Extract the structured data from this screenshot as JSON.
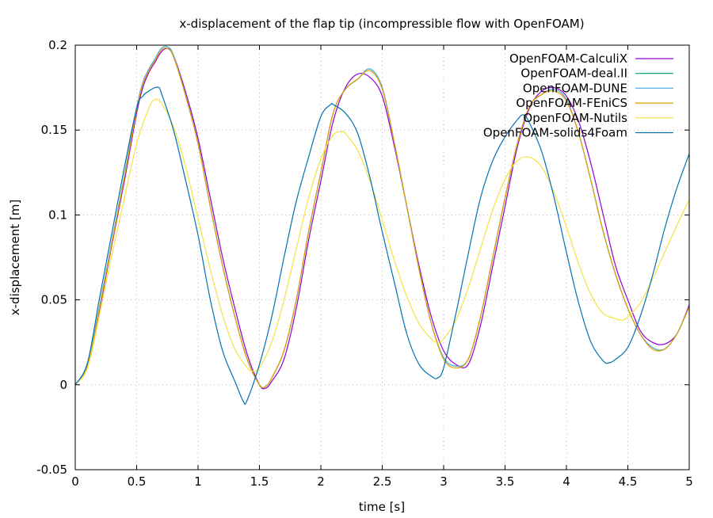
{
  "chart_data": {
    "type": "line",
    "title": "x-displacement of the flap tip (incompressible flow with OpenFOAM)",
    "xlabel": "time [s]",
    "ylabel": "x-displacement [m]",
    "xlim": [
      0,
      5
    ],
    "ylim": [
      -0.05,
      0.2
    ],
    "xticks": [
      0,
      0.5,
      1,
      1.5,
      2,
      2.5,
      3,
      3.5,
      4,
      4.5,
      5
    ],
    "xtick_labels": [
      "0",
      "0.5",
      "1",
      "1.5",
      "2",
      "2.5",
      "3",
      "3.5",
      "4",
      "4.5",
      "5"
    ],
    "yticks": [
      -0.05,
      0,
      0.05,
      0.1,
      0.15,
      0.2
    ],
    "ytick_labels": [
      "-0.05",
      "0",
      "0.05",
      "0.1",
      "0.15",
      "0.2"
    ],
    "grid": true,
    "legend_position": "upper right",
    "series": [
      {
        "name": "OpenFOAM-CalculiX",
        "color": "#9400d3",
        "x": [
          0,
          0.1,
          0.2,
          0.3,
          0.4,
          0.5,
          0.55,
          0.6,
          0.65,
          0.7,
          0.75,
          0.8,
          0.9,
          1.0,
          1.1,
          1.2,
          1.3,
          1.4,
          1.5,
          1.55,
          1.6,
          1.7,
          1.8,
          1.9,
          2.0,
          2.1,
          2.2,
          2.3,
          2.4,
          2.5,
          2.6,
          2.7,
          2.8,
          2.9,
          3.0,
          3.1,
          3.2,
          3.3,
          3.4,
          3.5,
          3.6,
          3.7,
          3.8,
          3.9,
          4.0,
          4.1,
          4.2,
          4.3,
          4.4,
          4.5,
          4.6,
          4.7,
          4.8,
          4.9,
          5.0
        ],
        "y": [
          0,
          0.012,
          0.045,
          0.083,
          0.12,
          0.16,
          0.175,
          0.184,
          0.19,
          0.196,
          0.198,
          0.194,
          0.172,
          0.145,
          0.11,
          0.075,
          0.045,
          0.018,
          0.0,
          -0.002,
          0.002,
          0.015,
          0.045,
          0.085,
          0.12,
          0.155,
          0.175,
          0.183,
          0.181,
          0.17,
          0.14,
          0.105,
          0.07,
          0.04,
          0.02,
          0.012,
          0.012,
          0.035,
          0.07,
          0.105,
          0.14,
          0.163,
          0.173,
          0.175,
          0.17,
          0.155,
          0.13,
          0.1,
          0.07,
          0.05,
          0.032,
          0.025,
          0.024,
          0.03,
          0.047
        ]
      },
      {
        "name": "OpenFOAM-deal.II",
        "color": "#009e73",
        "x": [
          0,
          0.1,
          0.2,
          0.3,
          0.4,
          0.5,
          0.55,
          0.6,
          0.65,
          0.7,
          0.75,
          0.8,
          0.9,
          1.0,
          1.1,
          1.2,
          1.3,
          1.4,
          1.5,
          1.55,
          1.6,
          1.7,
          1.8,
          1.9,
          2.0,
          2.1,
          2.2,
          2.3,
          2.4,
          2.5,
          2.6,
          2.7,
          2.8,
          2.9,
          3.0,
          3.1,
          3.2,
          3.3,
          3.4,
          3.5,
          3.6,
          3.7,
          3.8,
          3.9,
          4.0,
          4.1,
          4.2,
          4.3,
          4.4,
          4.5,
          4.6,
          4.7,
          4.8,
          4.9,
          5.0
        ],
        "y": [
          0,
          0.012,
          0.047,
          0.085,
          0.123,
          0.163,
          0.178,
          0.186,
          0.192,
          0.198,
          0.199,
          0.194,
          0.17,
          0.142,
          0.105,
          0.07,
          0.04,
          0.015,
          0.0,
          -0.001,
          0.004,
          0.02,
          0.05,
          0.09,
          0.125,
          0.16,
          0.174,
          0.18,
          0.186,
          0.175,
          0.142,
          0.105,
          0.068,
          0.036,
          0.016,
          0.011,
          0.015,
          0.04,
          0.075,
          0.11,
          0.142,
          0.164,
          0.171,
          0.174,
          0.168,
          0.148,
          0.12,
          0.09,
          0.065,
          0.045,
          0.03,
          0.022,
          0.021,
          0.03,
          0.046
        ]
      },
      {
        "name": "OpenFOAM-DUNE",
        "color": "#56b4e9",
        "x": [
          0,
          0.1,
          0.2,
          0.3,
          0.4,
          0.5,
          0.55,
          0.6,
          0.65,
          0.7,
          0.75,
          0.8,
          0.9,
          1.0,
          1.1,
          1.2,
          1.3,
          1.4,
          1.5,
          1.55,
          1.6,
          1.7,
          1.8,
          1.9,
          2.0,
          2.1,
          2.2,
          2.3,
          2.4,
          2.5,
          2.6,
          2.7,
          2.8,
          2.9,
          3.0,
          3.1,
          3.2,
          3.3,
          3.4,
          3.5,
          3.6,
          3.7,
          3.8,
          3.9,
          4.0,
          4.1,
          4.2,
          4.3,
          4.4,
          4.5,
          4.6,
          4.7,
          4.8,
          4.9,
          5.0
        ],
        "y": [
          0,
          0.012,
          0.047,
          0.085,
          0.123,
          0.163,
          0.178,
          0.186,
          0.192,
          0.198,
          0.199,
          0.194,
          0.17,
          0.142,
          0.105,
          0.07,
          0.04,
          0.015,
          0.0,
          -0.001,
          0.004,
          0.02,
          0.05,
          0.09,
          0.125,
          0.16,
          0.174,
          0.18,
          0.186,
          0.175,
          0.142,
          0.105,
          0.068,
          0.036,
          0.016,
          0.011,
          0.015,
          0.04,
          0.075,
          0.11,
          0.142,
          0.164,
          0.171,
          0.174,
          0.168,
          0.148,
          0.12,
          0.09,
          0.065,
          0.045,
          0.03,
          0.022,
          0.021,
          0.03,
          0.046
        ]
      },
      {
        "name": "OpenFOAM-FEniCS",
        "color": "#e69f00",
        "x": [
          0,
          0.1,
          0.2,
          0.3,
          0.4,
          0.5,
          0.55,
          0.6,
          0.65,
          0.7,
          0.75,
          0.8,
          0.9,
          1.0,
          1.1,
          1.2,
          1.3,
          1.4,
          1.5,
          1.55,
          1.6,
          1.7,
          1.8,
          1.9,
          2.0,
          2.1,
          2.2,
          2.3,
          2.4,
          2.5,
          2.6,
          2.7,
          2.8,
          2.9,
          3.0,
          3.1,
          3.2,
          3.3,
          3.4,
          3.5,
          3.6,
          3.7,
          3.8,
          3.9,
          4.0,
          4.1,
          4.2,
          4.3,
          4.4,
          4.5,
          4.6,
          4.7,
          4.8,
          4.9,
          5.0
        ],
        "y": [
          0,
          0.011,
          0.046,
          0.084,
          0.122,
          0.162,
          0.177,
          0.185,
          0.191,
          0.197,
          0.198,
          0.193,
          0.17,
          0.142,
          0.105,
          0.07,
          0.04,
          0.015,
          0.0,
          -0.001,
          0.004,
          0.02,
          0.05,
          0.09,
          0.125,
          0.16,
          0.174,
          0.18,
          0.185,
          0.174,
          0.142,
          0.105,
          0.068,
          0.036,
          0.015,
          0.01,
          0.015,
          0.04,
          0.075,
          0.11,
          0.142,
          0.164,
          0.171,
          0.173,
          0.167,
          0.148,
          0.12,
          0.09,
          0.065,
          0.045,
          0.03,
          0.021,
          0.021,
          0.03,
          0.046
        ]
      },
      {
        "name": "OpenFOAM-Nutils",
        "color": "#f0e442",
        "x": [
          0,
          0.1,
          0.2,
          0.3,
          0.4,
          0.5,
          0.6,
          0.65,
          0.7,
          0.8,
          0.9,
          1.0,
          1.1,
          1.2,
          1.3,
          1.4,
          1.45,
          1.5,
          1.6,
          1.7,
          1.8,
          1.9,
          2.0,
          2.1,
          2.17,
          2.2,
          2.3,
          2.4,
          2.5,
          2.6,
          2.7,
          2.8,
          2.9,
          2.95,
          3.0,
          3.1,
          3.2,
          3.3,
          3.4,
          3.5,
          3.6,
          3.7,
          3.8,
          3.9,
          4.0,
          4.1,
          4.2,
          4.3,
          4.4,
          4.45,
          4.5,
          4.6,
          4.7,
          4.8,
          4.9,
          5.0
        ],
        "y": [
          0,
          0.01,
          0.042,
          0.077,
          0.11,
          0.142,
          0.163,
          0.168,
          0.166,
          0.152,
          0.128,
          0.098,
          0.068,
          0.041,
          0.021,
          0.01,
          0.008,
          0.01,
          0.025,
          0.05,
          0.08,
          0.11,
          0.133,
          0.147,
          0.149,
          0.148,
          0.138,
          0.12,
          0.097,
          0.073,
          0.052,
          0.036,
          0.027,
          0.025,
          0.027,
          0.038,
          0.057,
          0.08,
          0.103,
          0.121,
          0.132,
          0.134,
          0.128,
          0.113,
          0.093,
          0.071,
          0.053,
          0.042,
          0.039,
          0.038,
          0.04,
          0.048,
          0.062,
          0.078,
          0.094,
          0.109
        ]
      },
      {
        "name": "OpenFOAM-solids4Foam",
        "color": "#0072b2",
        "x": [
          0,
          0.1,
          0.2,
          0.3,
          0.4,
          0.5,
          0.55,
          0.6,
          0.65,
          0.68,
          0.7,
          0.8,
          0.9,
          1.0,
          1.1,
          1.2,
          1.3,
          1.37,
          1.4,
          1.5,
          1.6,
          1.7,
          1.8,
          1.9,
          2.0,
          2.08,
          2.1,
          2.2,
          2.3,
          2.4,
          2.5,
          2.6,
          2.7,
          2.8,
          2.9,
          2.95,
          3.0,
          3.1,
          3.2,
          3.3,
          3.4,
          3.5,
          3.6,
          3.65,
          3.7,
          3.8,
          3.9,
          4.0,
          4.1,
          4.2,
          4.3,
          4.35,
          4.4,
          4.5,
          4.6,
          4.7,
          4.8,
          4.9,
          5.0
        ],
        "y": [
          0,
          0.013,
          0.052,
          0.09,
          0.128,
          0.163,
          0.17,
          0.173,
          0.175,
          0.175,
          0.172,
          0.15,
          0.12,
          0.088,
          0.05,
          0.02,
          0.002,
          -0.01,
          -0.009,
          0.012,
          0.04,
          0.075,
          0.108,
          0.134,
          0.158,
          0.165,
          0.165,
          0.16,
          0.148,
          0.122,
          0.09,
          0.06,
          0.03,
          0.012,
          0.005,
          0.004,
          0.01,
          0.042,
          0.077,
          0.11,
          0.132,
          0.146,
          0.156,
          0.159,
          0.154,
          0.137,
          0.11,
          0.078,
          0.048,
          0.025,
          0.014,
          0.013,
          0.015,
          0.022,
          0.04,
          0.064,
          0.092,
          0.116,
          0.136
        ]
      }
    ]
  }
}
